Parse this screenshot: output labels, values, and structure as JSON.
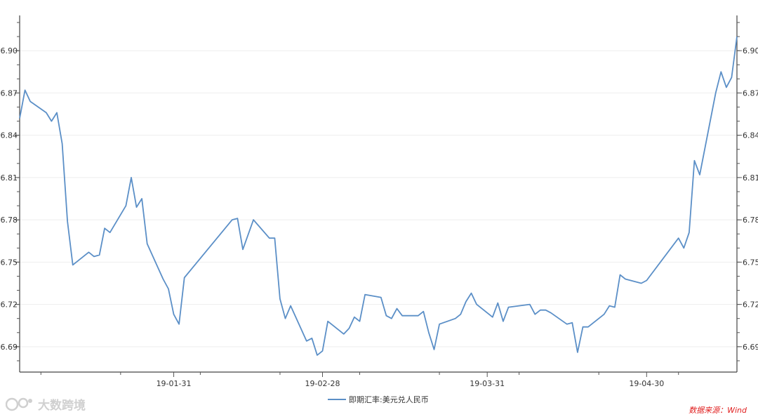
{
  "chart_data": {
    "type": "line",
    "series": [
      {
        "name": "即期汇率:美元兑人民币",
        "color": "#5b8fc7",
        "points": [
          [
            "2019-01-02",
            6.852
          ],
          [
            "2019-01-03",
            6.872
          ],
          [
            "2019-01-04",
            6.864
          ],
          [
            "2019-01-07",
            6.856
          ],
          [
            "2019-01-08",
            6.85
          ],
          [
            "2019-01-09",
            6.856
          ],
          [
            "2019-01-10",
            6.834
          ],
          [
            "2019-01-11",
            6.779
          ],
          [
            "2019-01-12",
            6.748
          ],
          [
            "2019-01-15",
            6.757
          ],
          [
            "2019-01-16",
            6.754
          ],
          [
            "2019-01-17",
            6.755
          ],
          [
            "2019-01-18",
            6.774
          ],
          [
            "2019-01-19",
            6.771
          ],
          [
            "2019-01-22",
            6.79
          ],
          [
            "2019-01-23",
            6.81
          ],
          [
            "2019-01-24",
            6.789
          ],
          [
            "2019-01-25",
            6.795
          ],
          [
            "2019-01-26",
            6.763
          ],
          [
            "2019-01-29",
            6.738
          ],
          [
            "2019-01-30",
            6.731
          ],
          [
            "2019-01-31",
            6.713
          ],
          [
            "2019-02-01",
            6.706
          ],
          [
            "2019-02-02",
            6.739
          ],
          [
            "2019-02-11",
            6.78
          ],
          [
            "2019-02-12",
            6.781
          ],
          [
            "2019-02-13",
            6.759
          ],
          [
            "2019-02-15",
            6.78
          ],
          [
            "2019-02-18",
            6.767
          ],
          [
            "2019-02-19",
            6.767
          ],
          [
            "2019-02-20",
            6.724
          ],
          [
            "2019-02-21",
            6.71
          ],
          [
            "2019-02-22",
            6.719
          ],
          [
            "2019-02-25",
            6.694
          ],
          [
            "2019-02-26",
            6.696
          ],
          [
            "2019-02-27",
            6.684
          ],
          [
            "2019-02-28",
            6.687
          ],
          [
            "2019-03-01",
            6.708
          ],
          [
            "2019-03-04",
            6.699
          ],
          [
            "2019-03-05",
            6.703
          ],
          [
            "2019-03-06",
            6.711
          ],
          [
            "2019-03-07",
            6.708
          ],
          [
            "2019-03-08",
            6.727
          ],
          [
            "2019-03-11",
            6.725
          ],
          [
            "2019-03-12",
            6.712
          ],
          [
            "2019-03-13",
            6.71
          ],
          [
            "2019-03-14",
            6.717
          ],
          [
            "2019-03-15",
            6.712
          ],
          [
            "2019-03-18",
            6.712
          ],
          [
            "2019-03-19",
            6.715
          ],
          [
            "2019-03-20",
            6.7
          ],
          [
            "2019-03-21",
            6.688
          ],
          [
            "2019-03-22",
            6.706
          ],
          [
            "2019-03-25",
            6.71
          ],
          [
            "2019-03-26",
            6.713
          ],
          [
            "2019-03-27",
            6.722
          ],
          [
            "2019-03-28",
            6.728
          ],
          [
            "2019-03-29",
            6.72
          ],
          [
            "2019-04-01",
            6.711
          ],
          [
            "2019-04-02",
            6.721
          ],
          [
            "2019-04-03",
            6.708
          ],
          [
            "2019-04-04",
            6.718
          ],
          [
            "2019-04-08",
            6.72
          ],
          [
            "2019-04-09",
            6.713
          ],
          [
            "2019-04-10",
            6.716
          ],
          [
            "2019-04-11",
            6.716
          ],
          [
            "2019-04-12",
            6.714
          ],
          [
            "2019-04-15",
            6.706
          ],
          [
            "2019-04-16",
            6.707
          ],
          [
            "2019-04-17",
            6.686
          ],
          [
            "2019-04-18",
            6.704
          ],
          [
            "2019-04-19",
            6.704
          ],
          [
            "2019-04-22",
            6.713
          ],
          [
            "2019-04-23",
            6.719
          ],
          [
            "2019-04-24",
            6.718
          ],
          [
            "2019-04-25",
            6.741
          ],
          [
            "2019-04-26",
            6.738
          ],
          [
            "2019-04-29",
            6.735
          ],
          [
            "2019-04-30",
            6.737
          ],
          [
            "2019-05-06",
            6.767
          ],
          [
            "2019-05-07",
            6.76
          ],
          [
            "2019-05-08",
            6.771
          ],
          [
            "2019-05-09",
            6.822
          ],
          [
            "2019-05-10",
            6.812
          ],
          [
            "2019-05-13",
            6.87
          ],
          [
            "2019-05-14",
            6.885
          ],
          [
            "2019-05-15",
            6.874
          ],
          [
            "2019-05-16",
            6.881
          ],
          [
            "2019-05-17",
            6.91
          ]
        ]
      }
    ],
    "x_ticks": [
      "19-01-31",
      "19-02-28",
      "19-03-31",
      "19-04-30"
    ],
    "y_ticks": [
      "6.69",
      "6.72",
      "6.75",
      "6.78",
      "6.81",
      "6.84",
      "6.87",
      "6.90"
    ],
    "x_range": [
      "2019-01-02",
      "2019-05-17"
    ],
    "ylim": [
      6.672,
      6.925
    ],
    "grid": "horizontal",
    "legend_position": "bottom-center",
    "title": "",
    "xlabel": "",
    "ylabel": ""
  },
  "source_note": "数据来源：Wind",
  "watermark_text": "大数跨境"
}
